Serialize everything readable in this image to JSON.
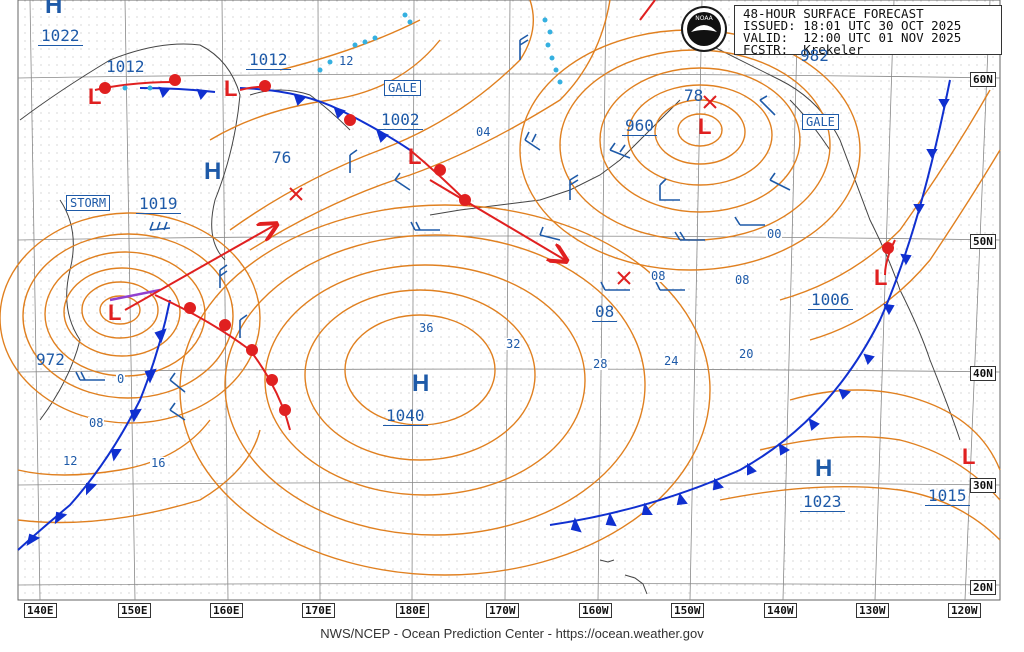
{
  "header": {
    "line1": "48-HOUR SURFACE FORECAST",
    "line2": "ISSUED: 18:01 UTC 30 OCT 2025",
    "line3": "VALID:  12:00 UTC 01 NOV 2025",
    "line4": "FCSTR:  Krekeler"
  },
  "logo_icon": "noaa-logo",
  "credit": "NWS/NCEP - Ocean Prediction Center - https://ocean.weather.gov",
  "longitude_labels": [
    "140E",
    "150E",
    "160E",
    "170E",
    "180E",
    "170W",
    "160W",
    "150W",
    "140W",
    "130W",
    "120W"
  ],
  "latitude_labels": [
    "60N",
    "50N",
    "40N",
    "30N",
    "20N"
  ],
  "highs": [
    {
      "symbol": "H",
      "pressure": "1022"
    },
    {
      "symbol": "H",
      "pressure": "1019"
    },
    {
      "symbol": "H",
      "pressure": "1040"
    },
    {
      "symbol": "H",
      "pressure": "1023"
    }
  ],
  "lows": [
    {
      "symbol": "L",
      "pressure": "1012"
    },
    {
      "symbol": "L",
      "pressure": "1012"
    },
    {
      "symbol": "L",
      "pressure": "1002"
    },
    {
      "symbol": "L",
      "pressure": "960"
    },
    {
      "symbol": "L",
      "pressure": "972"
    },
    {
      "symbol": "L",
      "pressure": "1006"
    },
    {
      "symbol": "L",
      "pressure": "1015"
    }
  ],
  "warnings": [
    "STORM",
    "GALE",
    "GALE"
  ],
  "isobar_labels": [
    "12",
    "04",
    "00",
    "08",
    "08",
    "20",
    "24",
    "28",
    "32",
    "36",
    "76",
    "78",
    "982",
    "08",
    "12",
    "16",
    "0",
    "08"
  ],
  "colors": {
    "isobar": "#e08020",
    "cold_front": "#1030d0",
    "warm_front": "#e02020",
    "labels": "#1e5aa8",
    "track_arrow": "#e02020"
  }
}
